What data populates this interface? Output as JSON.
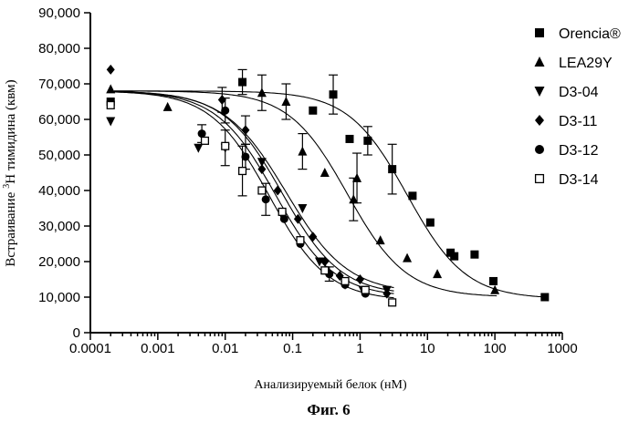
{
  "chart_data": {
    "type": "scatter",
    "x_scale": "log",
    "xlim": [
      0.0001,
      1000
    ],
    "ylim": [
      0,
      90000
    ],
    "x_ticks": [
      "0.0001",
      "0.001",
      "0.01",
      "0.1",
      "1",
      "10",
      "100",
      "1000"
    ],
    "y_ticks": [
      "0",
      "10,000",
      "20,000",
      "30,000",
      "40,000",
      "50,000",
      "60,000",
      "70,000",
      "80,000",
      "90,000"
    ],
    "xlabel": "Анализируемый белок (нМ)",
    "ylabel_prefix": "Встраивание",
    "ylabel_sup": "3",
    "ylabel_suffix": "H тимидина (квм)",
    "caption": "Фиг. 6",
    "grid": false,
    "legend_position": "right",
    "series": [
      {
        "name": "Orencia®",
        "marker": "square",
        "top": 68000,
        "bottom": 9500,
        "ec50": 5.0,
        "hill": 1.0,
        "points": [
          {
            "x": 0.0002,
            "y": 65000
          },
          {
            "x": 0.018,
            "y": 70500,
            "err": 3500
          },
          {
            "x": 0.2,
            "y": 62500
          },
          {
            "x": 0.4,
            "y": 67000,
            "err": 5500
          },
          {
            "x": 0.7,
            "y": 54500
          },
          {
            "x": 1.3,
            "y": 54000,
            "err": 4000
          },
          {
            "x": 3.0,
            "y": 46000,
            "err": 7000
          },
          {
            "x": 6.0,
            "y": 38500
          },
          {
            "x": 11,
            "y": 31000
          },
          {
            "x": 22,
            "y": 22500
          },
          {
            "x": 25,
            "y": 21500
          },
          {
            "x": 50,
            "y": 22000
          },
          {
            "x": 95,
            "y": 14500
          },
          {
            "x": 550,
            "y": 10000
          }
        ]
      },
      {
        "name": "LEA29Y",
        "marker": "triangle-up",
        "top": 68000,
        "bottom": 10000,
        "ec50": 0.65,
        "hill": 1.0,
        "points": [
          {
            "x": 0.0002,
            "y": 68500
          },
          {
            "x": 0.0014,
            "y": 63500
          },
          {
            "x": 0.035,
            "y": 67500,
            "err": 5000
          },
          {
            "x": 0.08,
            "y": 65000,
            "err": 5000
          },
          {
            "x": 0.14,
            "y": 51000,
            "err": 5000
          },
          {
            "x": 0.3,
            "y": 45000
          },
          {
            "x": 0.8,
            "y": 37500,
            "err": 6000
          },
          {
            "x": 0.9,
            "y": 43500,
            "err": 7000
          },
          {
            "x": 2.0,
            "y": 26000
          },
          {
            "x": 5.0,
            "y": 21000
          },
          {
            "x": 14,
            "y": 16500
          },
          {
            "x": 100,
            "y": 12000
          }
        ]
      },
      {
        "name": "D3-04",
        "marker": "triangle-down",
        "top": 68000,
        "bottom": 10500,
        "ec50": 0.07,
        "hill": 1.0,
        "points": [
          {
            "x": 0.0002,
            "y": 59500
          },
          {
            "x": 0.004,
            "y": 52000
          },
          {
            "x": 0.01,
            "y": 52000,
            "err": 5000
          },
          {
            "x": 0.035,
            "y": 48000
          },
          {
            "x": 0.07,
            "y": 33000
          },
          {
            "x": 0.14,
            "y": 35000
          },
          {
            "x": 0.25,
            "y": 20000
          },
          {
            "x": 0.6,
            "y": 13500
          },
          {
            "x": 1.1,
            "y": 12000
          },
          {
            "x": 2.5,
            "y": 12000
          }
        ]
      },
      {
        "name": "D3-11",
        "marker": "diamond",
        "top": 68000,
        "bottom": 11000,
        "ec50": 0.08,
        "hill": 0.95,
        "points": [
          {
            "x": 0.0002,
            "y": 74000
          },
          {
            "x": 0.009,
            "y": 65500,
            "err": 3500
          },
          {
            "x": 0.02,
            "y": 57000,
            "err": 4000
          },
          {
            "x": 0.035,
            "y": 46000
          },
          {
            "x": 0.06,
            "y": 40000
          },
          {
            "x": 0.12,
            "y": 32000
          },
          {
            "x": 0.2,
            "y": 27000
          },
          {
            "x": 0.3,
            "y": 20000
          },
          {
            "x": 0.5,
            "y": 16000
          },
          {
            "x": 1.0,
            "y": 15000
          },
          {
            "x": 2.5,
            "y": 11000
          }
        ]
      },
      {
        "name": "D3-12",
        "marker": "circle",
        "top": 68000,
        "bottom": 10000,
        "ec50": 0.055,
        "hill": 1.0,
        "points": [
          {
            "x": 0.0002,
            "y": 65000
          },
          {
            "x": 0.0045,
            "y": 56000,
            "err": 2500
          },
          {
            "x": 0.01,
            "y": 62500,
            "err": 3500
          },
          {
            "x": 0.02,
            "y": 49500,
            "err": 3500
          },
          {
            "x": 0.04,
            "y": 37500,
            "err": 4500
          },
          {
            "x": 0.075,
            "y": 32000
          },
          {
            "x": 0.13,
            "y": 25000
          },
          {
            "x": 0.35,
            "y": 16500,
            "err": 2000
          },
          {
            "x": 0.6,
            "y": 13500
          },
          {
            "x": 1.2,
            "y": 11000
          }
        ]
      },
      {
        "name": "D3-14",
        "marker": "square-open",
        "top": 68000,
        "bottom": 9000,
        "ec50": 0.045,
        "hill": 1.0,
        "points": [
          {
            "x": 0.0002,
            "y": 64000
          },
          {
            "x": 0.005,
            "y": 54000
          },
          {
            "x": 0.01,
            "y": 52500
          },
          {
            "x": 0.018,
            "y": 45500,
            "err": 7000
          },
          {
            "x": 0.035,
            "y": 40000
          },
          {
            "x": 0.07,
            "y": 34000
          },
          {
            "x": 0.13,
            "y": 26000
          },
          {
            "x": 0.3,
            "y": 17500
          },
          {
            "x": 0.6,
            "y": 14500
          },
          {
            "x": 1.2,
            "y": 12000
          },
          {
            "x": 3.0,
            "y": 8500
          }
        ]
      }
    ]
  }
}
